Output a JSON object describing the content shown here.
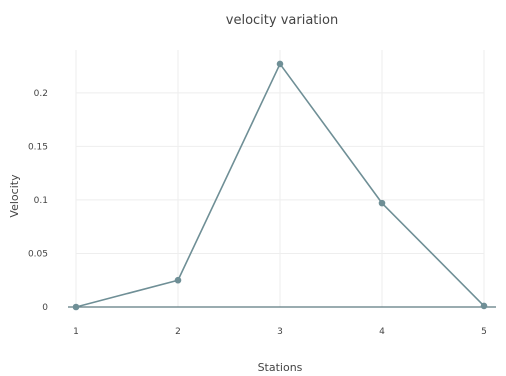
{
  "chart_data": {
    "type": "line",
    "title": "velocity variation",
    "xlabel": "Stations",
    "ylabel": "Velocity",
    "x": [
      1,
      2,
      3,
      4,
      5
    ],
    "series": [
      {
        "values": [
          0,
          0.025,
          0.227,
          0.097,
          0.001
        ]
      }
    ],
    "xlim": [
      1,
      5
    ],
    "ylim": [
      0,
      0.24
    ],
    "x_ticks": [
      "1",
      "2",
      "3",
      "4",
      "5"
    ],
    "y_ticks": [
      0,
      0.05,
      0.1,
      0.15,
      0.2
    ],
    "y_tick_labels": [
      "0",
      "0.05",
      "0.1",
      "0.15",
      "0.2"
    ],
    "grid": true,
    "line_color": "#6f8f96",
    "marker_color": "#6f8f96"
  }
}
